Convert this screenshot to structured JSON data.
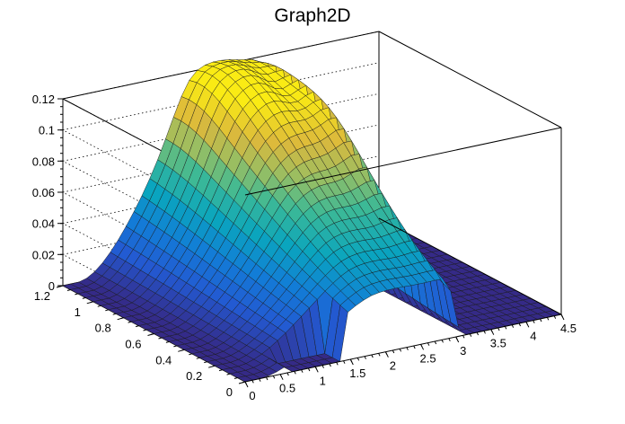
{
  "chart_data": {
    "type": "surface",
    "title": "Graph2D",
    "xlabel": "",
    "ylabel": "",
    "zlabel": "",
    "xlim": [
      0,
      4.5
    ],
    "ylim": [
      0,
      1.2
    ],
    "zlim": [
      0,
      0.12
    ],
    "x_ticks": [
      "0",
      "0.5",
      "1",
      "1.5",
      "2",
      "2.5",
      "3",
      "3.5",
      "4",
      "4.5"
    ],
    "y_ticks": [
      "0",
      "0.2",
      "0.4",
      "0.6",
      "0.8",
      "1",
      "1.2"
    ],
    "z_ticks": [
      "0",
      "0.02",
      "0.04",
      "0.06",
      "0.08",
      "0.1",
      "0.12"
    ],
    "grid": true,
    "colormap": "viridis-like (blue to yellow)",
    "surface_points": [
      {
        "x": 0.0,
        "y": 1.2,
        "z": 0.0
      },
      {
        "x": 0.5,
        "y": 1.2,
        "z": 0.005
      },
      {
        "x": 1.0,
        "y": 1.2,
        "z": 0.03
      },
      {
        "x": 1.5,
        "y": 1.2,
        "z": 0.067
      },
      {
        "x": 2.0,
        "y": 1.1,
        "z": 0.117
      },
      {
        "x": 2.3,
        "y": 1.0,
        "z": 0.112
      },
      {
        "x": 2.6,
        "y": 0.9,
        "z": 0.11
      },
      {
        "x": 2.9,
        "y": 0.8,
        "z": 0.104
      },
      {
        "x": 2.0,
        "y": 0.6,
        "z": 0.072
      },
      {
        "x": 2.5,
        "y": 0.6,
        "z": 0.095
      },
      {
        "x": 2.9,
        "y": 0.5,
        "z": 0.09
      },
      {
        "x": 1.0,
        "y": 0.3,
        "z": 0.03
      },
      {
        "x": 2.0,
        "y": 0.2,
        "z": 0.04
      },
      {
        "x": 2.9,
        "y": 0.2,
        "z": 0.05
      },
      {
        "x": 3.0,
        "y": 0.6,
        "z": 0.0
      },
      {
        "x": 4.5,
        "y": 0.6,
        "z": 0.0
      }
    ]
  }
}
